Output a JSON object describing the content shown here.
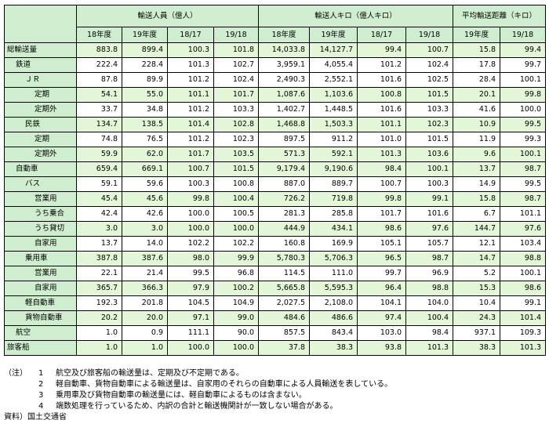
{
  "table": {
    "group_headers": [
      "輸送人員（億人）",
      "輸送人キロ（億人キロ）",
      "平均輸送距離（キロ）"
    ],
    "sub_headers": [
      "18年度",
      "19年度",
      "18/17",
      "19/18",
      "18年度",
      "19年度",
      "18/17",
      "19/18",
      "19年度",
      "19/18"
    ],
    "rows": [
      {
        "label": "総輸送量",
        "indent": 0,
        "values": [
          "883.8",
          "899.4",
          "100.3",
          "101.8",
          "14,033.8",
          "14,127.7",
          "99.4",
          "100.7",
          "15.8",
          "99.4"
        ]
      },
      {
        "label": "鉄道",
        "indent": 1,
        "values": [
          "222.4",
          "228.4",
          "101.3",
          "102.7",
          "3,959.1",
          "4,055.4",
          "101.2",
          "102.4",
          "17.8",
          "99.7"
        ]
      },
      {
        "label": "ＪＲ",
        "indent": 2,
        "values": [
          "87.8",
          "89.9",
          "101.2",
          "102.4",
          "2,490.3",
          "2,552.1",
          "101.6",
          "102.5",
          "28.4",
          "100.1"
        ]
      },
      {
        "label": "定期",
        "indent": 3,
        "values": [
          "54.1",
          "55.0",
          "101.1",
          "101.7",
          "1,087.6",
          "1,103.6",
          "100.8",
          "101.5",
          "20.1",
          "99.8"
        ]
      },
      {
        "label": "定期外",
        "indent": 3,
        "values": [
          "33.7",
          "34.8",
          "101.2",
          "103.3",
          "1,402.7",
          "1,448.5",
          "101.6",
          "103.3",
          "41.6",
          "100.0"
        ]
      },
      {
        "label": "民鉄",
        "indent": 2,
        "values": [
          "134.7",
          "138.5",
          "101.4",
          "102.8",
          "1,468.8",
          "1,503.3",
          "101.1",
          "102.3",
          "10.9",
          "99.5"
        ]
      },
      {
        "label": "定期",
        "indent": 3,
        "values": [
          "74.8",
          "76.5",
          "101.2",
          "102.3",
          "897.5",
          "911.2",
          "101.0",
          "101.5",
          "11.9",
          "99.3"
        ]
      },
      {
        "label": "定期外",
        "indent": 3,
        "values": [
          "59.9",
          "62.0",
          "101.7",
          "103.5",
          "571.3",
          "592.1",
          "101.3",
          "103.6",
          "9.6",
          "100.1"
        ]
      },
      {
        "label": "自動車",
        "indent": 1,
        "values": [
          "659.4",
          "669.1",
          "100.7",
          "101.5",
          "9,179.4",
          "9,190.6",
          "98.4",
          "100.1",
          "13.7",
          "98.7"
        ]
      },
      {
        "label": "バス",
        "indent": 2,
        "values": [
          "59.1",
          "59.6",
          "100.3",
          "100.8",
          "887.0",
          "889.7",
          "100.7",
          "100.3",
          "14.9",
          "99.5"
        ]
      },
      {
        "label": "営業用",
        "indent": 3,
        "values": [
          "45.4",
          "45.6",
          "99.8",
          "100.4",
          "726.2",
          "719.8",
          "99.8",
          "99.1",
          "15.8",
          "98.7"
        ]
      },
      {
        "label": "うち乗合",
        "indent": 3,
        "values": [
          "42.4",
          "42.6",
          "100.0",
          "100.5",
          "281.3",
          "285.8",
          "101.7",
          "101.6",
          "6.7",
          "101.1"
        ]
      },
      {
        "label": "うち貸切",
        "indent": 3,
        "values": [
          "3.0",
          "3.0",
          "100.0",
          "100.0",
          "444.9",
          "434.1",
          "98.6",
          "97.6",
          "144.7",
          "97.6"
        ]
      },
      {
        "label": "自家用",
        "indent": 3,
        "values": [
          "13.7",
          "14.0",
          "102.2",
          "102.2",
          "160.8",
          "169.9",
          "105.1",
          "105.7",
          "12.1",
          "103.4"
        ]
      },
      {
        "label": "乗用車",
        "indent": 2,
        "values": [
          "387.8",
          "387.6",
          "98.0",
          "99.9",
          "5,780.3",
          "5,706.3",
          "96.5",
          "98.7",
          "14.7",
          "98.8"
        ]
      },
      {
        "label": "営業用",
        "indent": 3,
        "values": [
          "22.1",
          "21.4",
          "99.5",
          "96.8",
          "114.5",
          "111.0",
          "99.7",
          "96.9",
          "5.2",
          "100.1"
        ]
      },
      {
        "label": "自家用",
        "indent": 3,
        "values": [
          "365.7",
          "366.3",
          "97.9",
          "100.2",
          "5,665.8",
          "5,595.3",
          "96.4",
          "98.8",
          "15.3",
          "98.6"
        ]
      },
      {
        "label": "軽自動車",
        "indent": 2,
        "values": [
          "192.3",
          "201.8",
          "104.5",
          "104.9",
          "2,027.5",
          "2,108.0",
          "104.1",
          "104.0",
          "10.4",
          "99.1"
        ]
      },
      {
        "label": "貨物自動車",
        "indent": 2,
        "values": [
          "20.2",
          "20.0",
          "97.1",
          "99.0",
          "484.6",
          "486.6",
          "97.4",
          "100.4",
          "24.3",
          "101.4"
        ]
      },
      {
        "label": "航空",
        "indent": 1,
        "values": [
          "1.0",
          "0.9",
          "111.1",
          "90.0",
          "857.5",
          "843.4",
          "103.0",
          "98.4",
          "937.1",
          "109.3"
        ]
      },
      {
        "label": "旅客船",
        "indent": 0,
        "values": [
          "1.0",
          "1.0",
          "100.0",
          "100.0",
          "37.8",
          "38.3",
          "93.8",
          "101.3",
          "38.3",
          "101.3"
        ]
      }
    ]
  },
  "notes": {
    "prefix": "（注）",
    "items": [
      {
        "num": "1",
        "text": "航空及び旅客船の輸送量は、定期及び不定期である。"
      },
      {
        "num": "2",
        "text": "軽自動車、貨物自動車による輸送量は、自家用のそれらの自動車による人員輸送を表している。"
      },
      {
        "num": "3",
        "text": "乗用車及び貨物自動車の輸送量には、軽自動車によるものは含まない。"
      },
      {
        "num": "4",
        "text": "端数処理を行っているため、内訳の合計と輸送機関計が一致しない場合がある。"
      }
    ],
    "source": "資料）国土交通省"
  },
  "colors": {
    "header_bg": "#cfeecf",
    "row_alt_bg": "#e4f6d8",
    "row_bg": "#ffffff"
  }
}
